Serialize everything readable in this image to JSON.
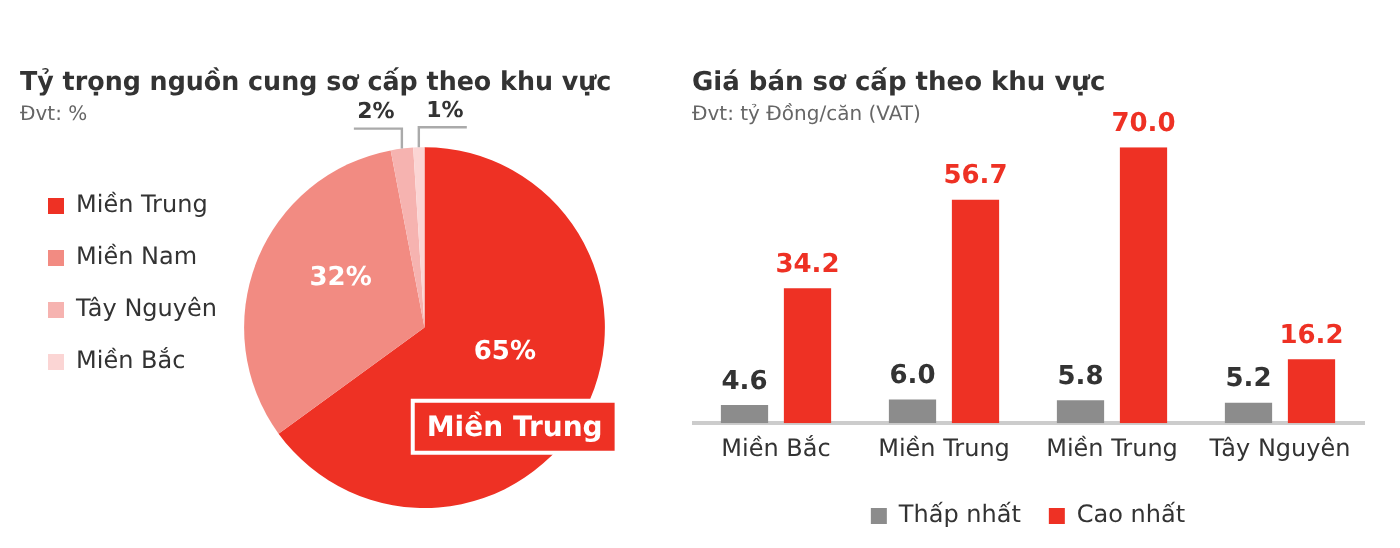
{
  "chart_data": [
    {
      "type": "pie",
      "title": "Tỷ trọng nguồn cung sơ cấp theo khu vực",
      "subtitle": "Đvt: %",
      "categories": [
        "Miền Trung",
        "Miền Nam",
        "Tây Nguyên",
        "Miền Bắc"
      ],
      "values": [
        65,
        32,
        2,
        1
      ],
      "colors": [
        "#ee3124",
        "#f28b82",
        "#f6b3b0",
        "#fbd5d4"
      ],
      "value_labels": [
        "65%",
        "32%",
        "2%",
        "1%"
      ],
      "legend": "left",
      "annotations": [
        "Miền Trung"
      ]
    },
    {
      "type": "bar",
      "title": "Giá bán sơ cấp theo khu vực",
      "subtitle": "Đvt: tỷ Đồng/căn (VAT)",
      "categories": [
        "Miền Bắc",
        "Miền Trung",
        "Miền Trung",
        "Tây Nguyên"
      ],
      "legend": "bottom",
      "series": [
        {
          "name": "Thấp nhất",
          "color": "#8c8c8c",
          "values": [
            4.6,
            6.0,
            5.8,
            5.2
          ],
          "value_labels": [
            "4.6",
            "6.0",
            "5.8",
            "5.2"
          ]
        },
        {
          "name": "Cao nhất",
          "color": "#ee3124",
          "values": [
            34.2,
            56.7,
            70.0,
            16.2
          ],
          "value_labels": [
            "34.2",
            "56.7",
            "70.0",
            "16.2"
          ]
        }
      ]
    }
  ]
}
